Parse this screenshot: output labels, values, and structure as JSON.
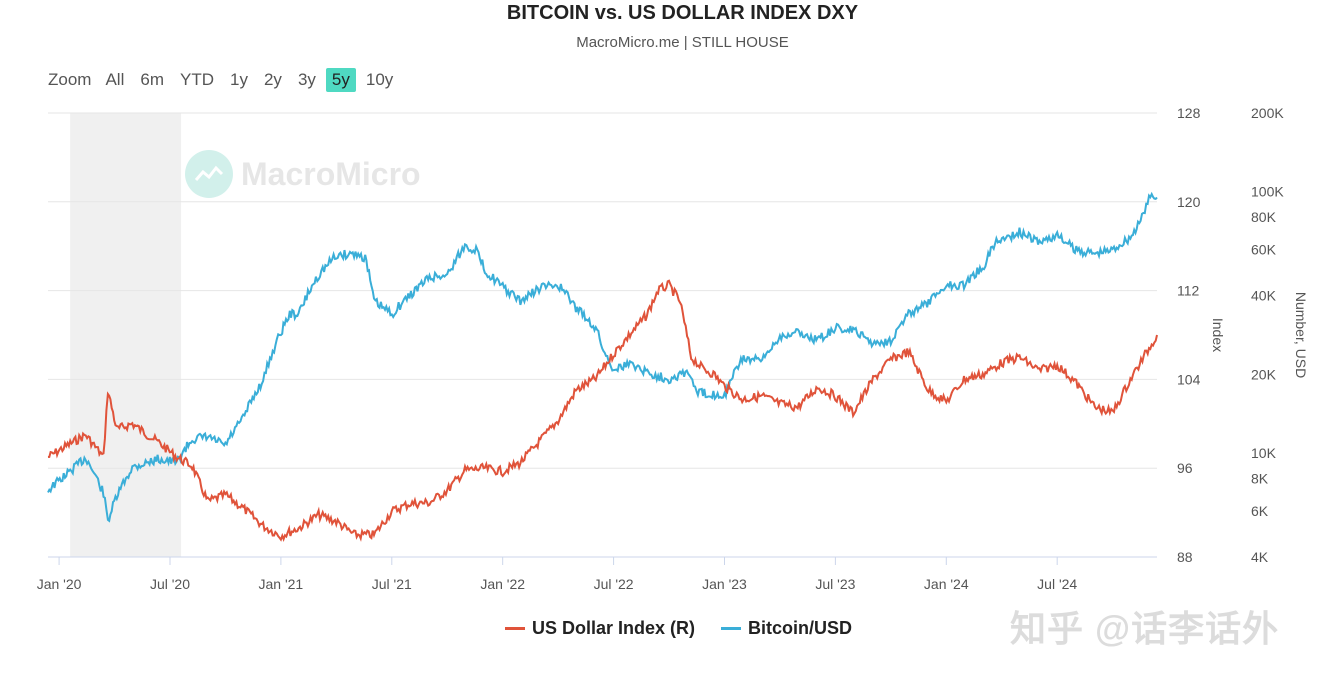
{
  "header": {
    "title": "BITCOIN vs. US DOLLAR INDEX DXY",
    "subtitle": "MacroMicro.me | STILL HOUSE"
  },
  "zoom": {
    "label": "Zoom",
    "buttons": [
      "All",
      "6m",
      "YTD",
      "1y",
      "2y",
      "3y",
      "5y",
      "10y"
    ],
    "active": "5y"
  },
  "watermark": {
    "logo_text": "MacroMicro",
    "corner_text": "知乎 @话李话外"
  },
  "legend": {
    "items": [
      {
        "label": "US Dollar Index (R)",
        "color": "#e0533a"
      },
      {
        "label": "Bitcoin/USD",
        "color": "#3aaed8"
      }
    ]
  },
  "chart_data": {
    "type": "line",
    "title": "BITCOIN vs. US DOLLAR INDEX DXY",
    "x_ticks": [
      "Jan '20",
      "Jul '20",
      "Jan '21",
      "Jul '21",
      "Jan '22",
      "Jul '22",
      "Jan '23",
      "Jul '23",
      "Jan '24",
      "Jul '24"
    ],
    "x_range": [
      2019.95,
      2024.95
    ],
    "index_axis": {
      "title": "Index",
      "range": [
        88,
        128
      ],
      "ticks": [
        "128",
        "120",
        "112",
        "104",
        "96",
        "88"
      ]
    },
    "usd_axis": {
      "title": "Number, USD",
      "scale": "log",
      "range": [
        4000,
        200000
      ],
      "ticks": [
        [
          "200K",
          200000
        ],
        [
          "100K",
          100000
        ],
        [
          "80K",
          80000
        ],
        [
          "60K",
          60000
        ],
        [
          "40K",
          40000
        ],
        [
          "20K",
          20000
        ],
        [
          "10K",
          10000
        ],
        [
          "8K",
          8000
        ],
        [
          "6K",
          6000
        ],
        [
          "4K",
          4000
        ]
      ]
    },
    "shaded_period": [
      2020.05,
      2020.55
    ],
    "series": [
      {
        "name": "US Dollar Index (R)",
        "color": "#e0533a",
        "axis": "index",
        "x": [
          2019.95,
          2020.05,
          2020.12,
          2020.2,
          2020.22,
          2020.26,
          2020.33,
          2020.45,
          2020.53,
          2020.6,
          2020.67,
          2020.75,
          2020.83,
          2020.92,
          2021.0,
          2021.08,
          2021.17,
          2021.25,
          2021.33,
          2021.42,
          2021.5,
          2021.58,
          2021.67,
          2021.75,
          2021.83,
          2021.92,
          2022.0,
          2022.08,
          2022.17,
          2022.25,
          2022.33,
          2022.42,
          2022.5,
          2022.58,
          2022.65,
          2022.7,
          2022.75,
          2022.8,
          2022.85,
          2022.9,
          2022.95,
          2023.0,
          2023.08,
          2023.17,
          2023.25,
          2023.33,
          2023.42,
          2023.5,
          2023.58,
          2023.67,
          2023.75,
          2023.83,
          2023.92,
          2024.0,
          2024.08,
          2024.17,
          2024.25,
          2024.33,
          2024.42,
          2024.5,
          2024.58,
          2024.67,
          2024.75,
          2024.83,
          2024.92,
          2024.95
        ],
        "y": [
          97.0,
          98.2,
          99.0,
          97.0,
          103.0,
          99.5,
          100.0,
          98.3,
          97.0,
          96.2,
          93.0,
          93.6,
          92.4,
          90.8,
          89.9,
          90.6,
          91.8,
          91.2,
          90.0,
          90.0,
          92.1,
          92.8,
          92.9,
          94.0,
          95.8,
          96.0,
          95.7,
          96.5,
          98.5,
          100.3,
          103.0,
          104.1,
          106.3,
          108.2,
          109.8,
          112.0,
          112.5,
          111.0,
          106.0,
          105.0,
          104.5,
          103.4,
          102.2,
          102.5,
          101.8,
          101.5,
          103.3,
          102.5,
          101.0,
          104.0,
          105.8,
          106.5,
          103.0,
          102.0,
          104.0,
          104.5,
          105.5,
          106.0,
          104.8,
          105.3,
          103.8,
          101.5,
          101.0,
          104.0,
          107.0,
          108.0
        ]
      },
      {
        "name": "Bitcoin/USD",
        "color": "#3aaed8",
        "axis": "usd",
        "x": [
          2019.95,
          2020.05,
          2020.12,
          2020.2,
          2020.22,
          2020.26,
          2020.33,
          2020.45,
          2020.53,
          2020.6,
          2020.67,
          2020.75,
          2020.83,
          2020.92,
          2021.0,
          2021.04,
          2021.08,
          2021.17,
          2021.25,
          2021.33,
          2021.38,
          2021.42,
          2021.5,
          2021.58,
          2021.67,
          2021.75,
          2021.83,
          2021.88,
          2021.92,
          2022.0,
          2022.08,
          2022.17,
          2022.25,
          2022.33,
          2022.42,
          2022.46,
          2022.5,
          2022.58,
          2022.67,
          2022.75,
          2022.83,
          2022.88,
          2022.95,
          2023.0,
          2023.08,
          2023.17,
          2023.25,
          2023.33,
          2023.42,
          2023.5,
          2023.58,
          2023.67,
          2023.75,
          2023.83,
          2023.92,
          2024.0,
          2024.08,
          2024.17,
          2024.22,
          2024.33,
          2024.42,
          2024.5,
          2024.58,
          2024.67,
          2024.75,
          2024.83,
          2024.87,
          2024.92,
          2024.95
        ],
        "y": [
          7200,
          8500,
          9600,
          7000,
          5500,
          6800,
          8800,
          9500,
          9200,
          11300,
          11500,
          10700,
          13600,
          19000,
          29000,
          34000,
          34000,
          48000,
          57000,
          58000,
          56000,
          38000,
          34000,
          40000,
          47000,
          48000,
          62000,
          60000,
          50000,
          43000,
          38000,
          43000,
          44000,
          36000,
          30000,
          24000,
          21000,
          22000,
          20000,
          19200,
          20500,
          17000,
          16800,
          16600,
          23000,
          22500,
          28000,
          29000,
          27000,
          30000,
          29500,
          26300,
          27000,
          34000,
          37500,
          44000,
          44000,
          52000,
          64000,
          70000,
          64000,
          68000,
          60000,
          58000,
          60000,
          67000,
          75000,
          96000,
          95000
        ]
      }
    ]
  }
}
